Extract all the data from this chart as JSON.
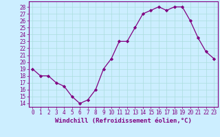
{
  "x": [
    0,
    1,
    2,
    3,
    4,
    5,
    6,
    7,
    8,
    9,
    10,
    11,
    12,
    13,
    14,
    15,
    16,
    17,
    18,
    19,
    20,
    21,
    22,
    23
  ],
  "y": [
    19,
    18,
    18,
    17,
    16.5,
    15,
    14,
    14.5,
    16,
    19,
    20.5,
    23,
    23,
    25,
    27,
    27.5,
    28,
    27.5,
    28,
    28,
    26,
    23.5,
    21.5,
    20.5
  ],
  "line_color": "#800080",
  "marker": "D",
  "marker_size": 2.2,
  "background_color": "#cceeff",
  "grid_color": "#aadddd",
  "ylim": [
    13.5,
    28.8
  ],
  "xlim": [
    -0.5,
    23.5
  ],
  "yticks": [
    14,
    15,
    16,
    17,
    18,
    19,
    20,
    21,
    22,
    23,
    24,
    25,
    26,
    27,
    28
  ],
  "xticks": [
    0,
    1,
    2,
    3,
    4,
    5,
    6,
    7,
    8,
    9,
    10,
    11,
    12,
    13,
    14,
    15,
    16,
    17,
    18,
    19,
    20,
    21,
    22,
    23
  ],
  "tick_label_fontsize": 5.5,
  "xlabel": "Windchill (Refroidissement éolien,°C)",
  "xlabel_fontsize": 6.5,
  "axis_color": "#800080",
  "spine_color": "#800080",
  "linewidth": 0.9
}
